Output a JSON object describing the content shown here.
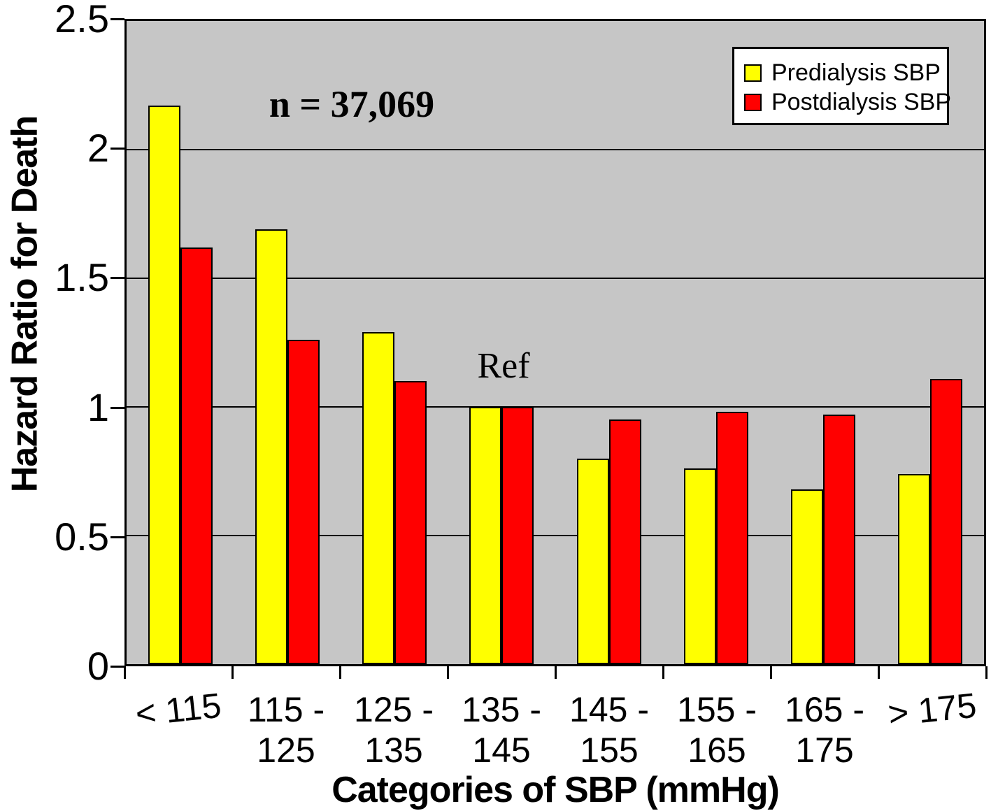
{
  "chart_data": {
    "type": "bar",
    "title": "",
    "xlabel": "Categories of SBP (mmHg)",
    "ylabel": "Hazard Ratio for Death",
    "ylim": [
      0,
      2.5
    ],
    "yticks": [
      0,
      0.5,
      1,
      1.5,
      2,
      2.5
    ],
    "ytick_labels": [
      "0",
      "0.5",
      "1",
      "1.5",
      "2",
      "2.5"
    ],
    "categories": [
      "< 115",
      "115 - 125",
      "125 - 135",
      "135 - 145",
      "145 - 155",
      "155 - 165",
      "165 - 175",
      "> 175"
    ],
    "category_label_lines": [
      [
        "< 115"
      ],
      [
        "115 -",
        "125"
      ],
      [
        "125 -",
        "135"
      ],
      [
        "135 -",
        "145"
      ],
      [
        "145 -",
        "155"
      ],
      [
        "155 -",
        "165"
      ],
      [
        "165 -",
        "175"
      ],
      [
        "> 175"
      ]
    ],
    "tilted_label_indices": [
      0,
      7
    ],
    "series": [
      {
        "name": "Predialysis SBP",
        "color": "#FFFF00",
        "values": [
          2.17,
          1.69,
          1.29,
          1.0,
          0.8,
          0.76,
          0.68,
          0.74
        ]
      },
      {
        "name": "Postdialysis SBP",
        "color": "#FF0000",
        "values": [
          1.62,
          1.26,
          1.1,
          1.0,
          0.95,
          0.98,
          0.97,
          1.11
        ]
      }
    ],
    "annotations": {
      "sample_size": "n = 37,069",
      "reference": "Ref",
      "reference_category": "135 - 145"
    },
    "grid": true,
    "legend_position": "top-right",
    "colors": {
      "plot_background": "#C6C6C6",
      "page_background": "#FFFFFF",
      "axis": "#000000",
      "gridline": "#000000"
    }
  }
}
